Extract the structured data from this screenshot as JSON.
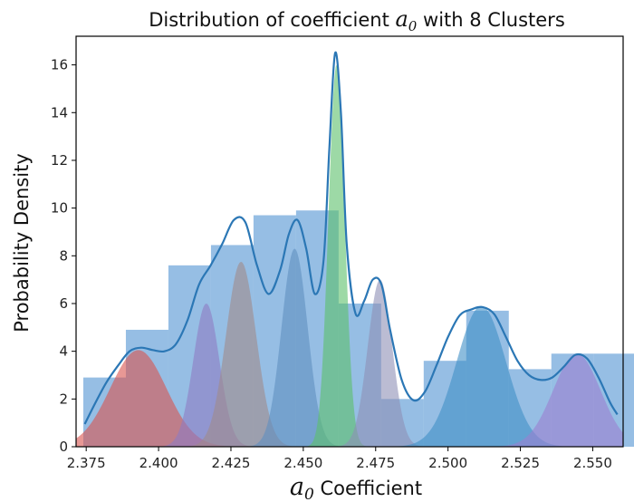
{
  "chart_data": {
    "type": "histogram",
    "title_prefix": "Distribution of coefficient ",
    "title_math": "a",
    "title_math_sub": "0",
    "title_suffix": " with 8 Clusters",
    "xlabel_math": "a",
    "xlabel_math_sub": "0",
    "xlabel_suffix": " Coefficient",
    "ylabel": "Probability Density",
    "xlim": [
      2.3715,
      2.5605
    ],
    "ylim": [
      0,
      17.2
    ],
    "xticks": [
      2.375,
      2.4,
      2.425,
      2.45,
      2.475,
      2.5,
      2.525,
      2.55
    ],
    "xtick_labels": [
      "2.375",
      "2.400",
      "2.425",
      "2.450",
      "2.475",
      "2.500",
      "2.525",
      "2.550"
    ],
    "yticks": [
      0,
      2,
      4,
      6,
      8,
      10,
      12,
      14,
      16
    ],
    "ytick_labels": [
      "0",
      "2",
      "4",
      "6",
      "8",
      "10",
      "12",
      "14",
      "16"
    ],
    "grid": false,
    "legend": false,
    "histogram": {
      "color": "#4a8fd0",
      "bin_edges": [
        2.374,
        2.3887,
        2.4034,
        2.4181,
        2.4328,
        2.4475,
        2.4622,
        2.4769,
        2.4916,
        2.5063,
        2.521,
        2.5357,
        2.5504,
        2.5651
      ],
      "densities": [
        2.9,
        4.9,
        7.6,
        8.45,
        9.7,
        9.9,
        6.0,
        2.0,
        3.6,
        5.7,
        3.25,
        3.9,
        3.9
      ]
    },
    "clusters": [
      {
        "mean": 2.393,
        "std": 0.0097,
        "peak": 4.05,
        "color": "#d9534f"
      },
      {
        "mean": 2.4165,
        "std": 0.0045,
        "peak": 6.0,
        "color": "#8e7cc3"
      },
      {
        "mean": 2.4285,
        "std": 0.0052,
        "peak": 7.75,
        "color": "#a08a8a"
      },
      {
        "mean": 2.447,
        "std": 0.0045,
        "peak": 8.3,
        "color": "#5f8fbf"
      },
      {
        "mean": 2.4615,
        "std": 0.0028,
        "peak": 16.0,
        "color": "#5cbf6a"
      },
      {
        "mean": 2.4765,
        "std": 0.0042,
        "peak": 7.0,
        "color": "#8e8fb5"
      },
      {
        "mean": 2.5115,
        "std": 0.0085,
        "peak": 5.9,
        "color": "#3f8fc6"
      },
      {
        "mean": 2.5445,
        "std": 0.0082,
        "peak": 3.9,
        "color": "#9b7fd0"
      }
    ],
    "kde": {
      "color": "#2b77b5",
      "x": [
        2.3745,
        2.378,
        2.382,
        2.386,
        2.39,
        2.394,
        2.398,
        2.402,
        2.406,
        2.41,
        2.414,
        2.418,
        2.422,
        2.426,
        2.43,
        2.434,
        2.438,
        2.442,
        2.445,
        2.448,
        2.451,
        2.454,
        2.457,
        2.459,
        2.461,
        2.463,
        2.465,
        2.468,
        2.471,
        2.474,
        2.477,
        2.48,
        2.484,
        2.488,
        2.492,
        2.496,
        2.5,
        2.504,
        2.508,
        2.512,
        2.516,
        2.52,
        2.524,
        2.528,
        2.532,
        2.536,
        2.54,
        2.544,
        2.548,
        2.552,
        2.556,
        2.5585
      ],
      "y": [
        0.95,
        1.8,
        2.7,
        3.4,
        4.0,
        4.15,
        4.05,
        4.0,
        4.3,
        5.3,
        6.8,
        7.6,
        8.5,
        9.5,
        9.4,
        7.6,
        6.4,
        7.4,
        8.9,
        9.5,
        8.3,
        6.4,
        7.8,
        12.5,
        16.5,
        14.0,
        8.5,
        5.6,
        6.1,
        7.0,
        6.8,
        4.9,
        2.8,
        1.95,
        2.3,
        3.4,
        4.6,
        5.5,
        5.75,
        5.85,
        5.55,
        4.6,
        3.6,
        3.0,
        2.8,
        2.9,
        3.35,
        3.85,
        3.7,
        2.9,
        1.85,
        1.35
      ]
    }
  }
}
